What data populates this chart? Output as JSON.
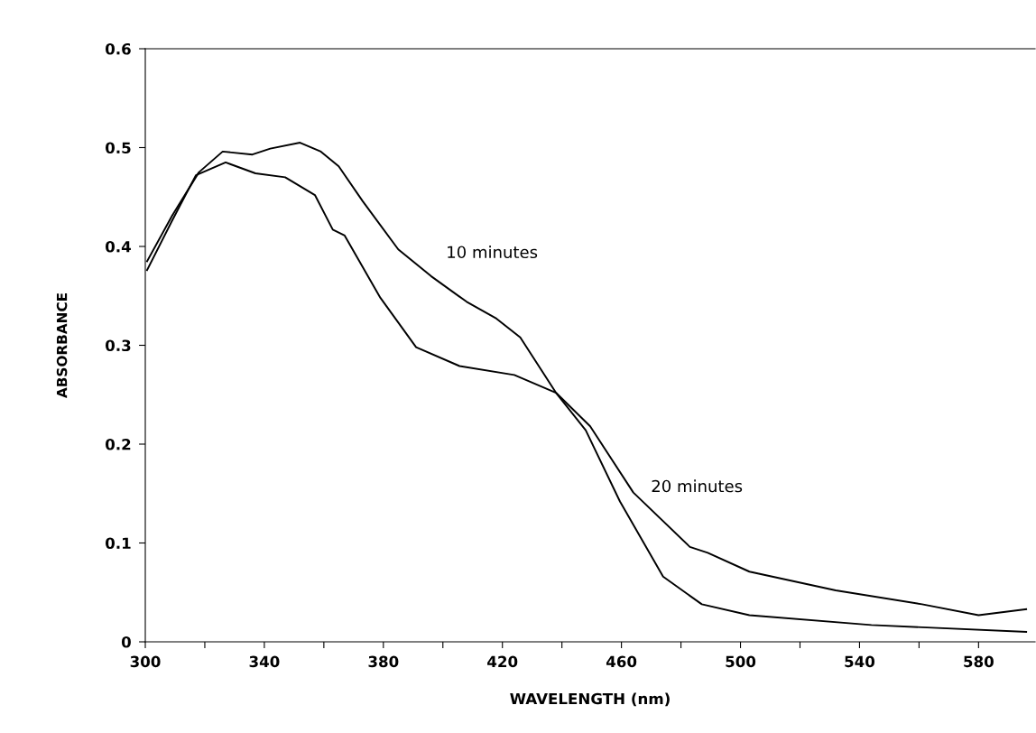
{
  "chart_data": {
    "type": "line",
    "xlabel": "WAVELENGTH (nm)",
    "ylabel": "ABSORBANCE",
    "xlim": [
      300,
      599
    ],
    "ylim": [
      0,
      0.6
    ],
    "xticks": [
      300,
      {
        "value": 320,
        "label": null
      },
      340,
      {
        "value": 360,
        "label": null
      },
      380,
      {
        "value": 400,
        "label": null
      },
      420,
      {
        "value": 440,
        "label": null
      },
      460,
      {
        "value": 480,
        "label": null
      },
      500,
      {
        "value": 520,
        "label": null
      },
      540,
      {
        "value": 560,
        "label": null
      },
      580
    ],
    "yticks": [
      0,
      0.1,
      0.2,
      0.3,
      0.4,
      0.5,
      0.6
    ],
    "grid": false,
    "legend": false,
    "marker": "none",
    "line_style": "solid",
    "series": [
      {
        "name": "10 minutes",
        "color": "#000000",
        "x": [
          300.6,
          309,
          318,
          326,
          336,
          342,
          352,
          359,
          365,
          373,
          385,
          396,
          408,
          418,
          426,
          438,
          448,
          459.5,
          474,
          487,
          503,
          544,
          596
        ],
        "values": [
          0.385,
          0.431,
          0.475,
          0.496,
          0.493,
          0.499,
          0.505,
          0.496,
          0.481,
          0.446,
          0.397,
          0.37,
          0.344,
          0.327,
          0.308,
          0.252,
          0.214,
          0.142,
          0.066,
          0.038,
          0.027,
          0.017,
          0.01
        ]
      },
      {
        "name": "20 minutes",
        "color": "#000000",
        "x": [
          300.6,
          309,
          317,
          327,
          337,
          347,
          357,
          363,
          367,
          379,
          391,
          405.6,
          424,
          438,
          449.5,
          464,
          483,
          489,
          503,
          532,
          561,
          580,
          596
        ],
        "values": [
          0.376,
          0.426,
          0.472,
          0.485,
          0.474,
          0.47,
          0.452,
          0.417,
          0.411,
          0.348,
          0.298,
          0.279,
          0.27,
          0.252,
          0.218,
          0.151,
          0.096,
          0.09,
          0.071,
          0.052,
          0.038,
          0.027,
          0.033
        ]
      }
    ]
  }
}
